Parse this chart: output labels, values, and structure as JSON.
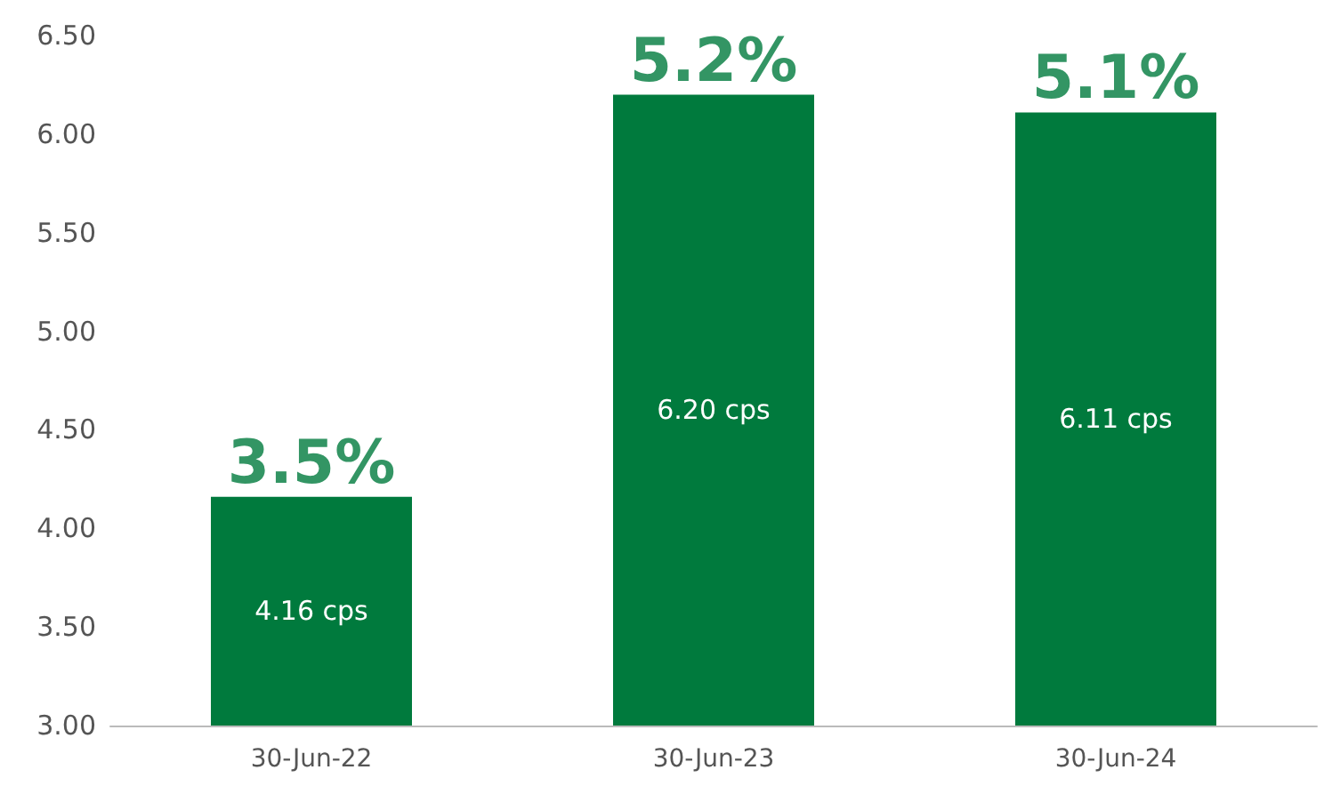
{
  "chart_data": {
    "type": "bar",
    "categories": [
      "30-Jun-22",
      "30-Jun-23",
      "30-Jun-24"
    ],
    "values": [
      4.16,
      6.2,
      6.11
    ],
    "value_labels": [
      "4.16 cps",
      "6.20 cps",
      "6.11 cps"
    ],
    "color": "#007a3d",
    "ylim": [
      3,
      6.5
    ],
    "yticks": [
      {
        "value": 3,
        "label": "3.00"
      },
      {
        "value": 3.5,
        "label": "3.50"
      },
      {
        "value": 4,
        "label": "4.00"
      },
      {
        "value": 4.5,
        "label": "4.50"
      },
      {
        "value": 5,
        "label": "5.00"
      },
      {
        "value": 5.5,
        "label": "5.50"
      },
      {
        "value": 6,
        "label": "6.00"
      },
      {
        "value": 6.5,
        "label": "6.50"
      }
    ],
    "annotations": [
      {
        "text": "3.5%",
        "x": "30-Jun-22",
        "y": 4.16
      },
      {
        "text": "5.2%",
        "x": "30-Jun-23",
        "y": 6.2
      },
      {
        "text": "5.1%",
        "x": "30-Jun-24",
        "y": 6.11
      }
    ],
    "grid": false
  }
}
